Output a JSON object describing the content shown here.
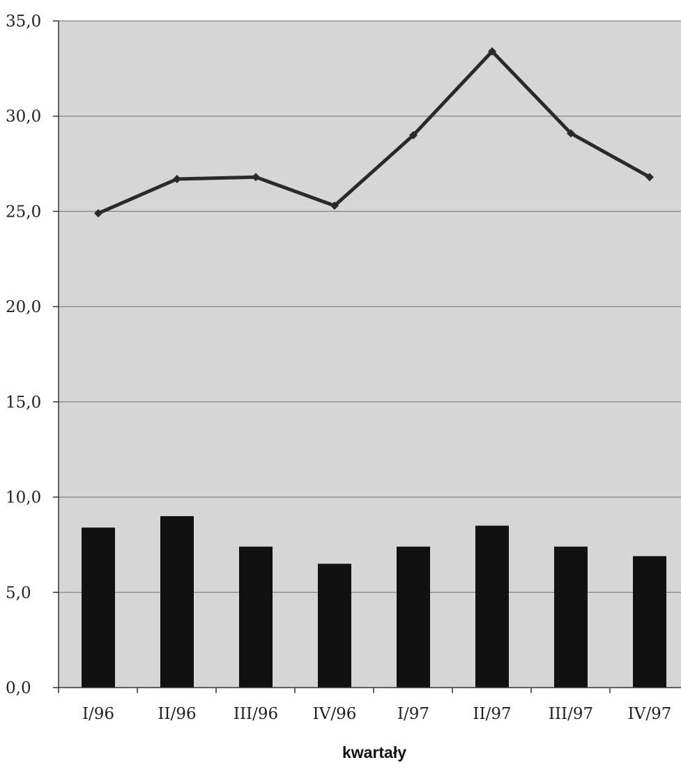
{
  "chart_data": {
    "type": "bar",
    "categories": [
      "I/96",
      "II/96",
      "III/96",
      "IV/96",
      "I/97",
      "II/97",
      "III/97",
      "IV/97"
    ],
    "series": [
      {
        "type": "bar",
        "values": [
          8.4,
          9.0,
          7.4,
          6.5,
          7.4,
          8.5,
          7.4,
          6.9
        ],
        "color": "#111111"
      },
      {
        "type": "line",
        "values": [
          24.9,
          26.7,
          26.8,
          25.3,
          29.0,
          33.4,
          29.1,
          26.8
        ],
        "color": "#2a2a2a"
      }
    ],
    "yticks": [
      "0,0",
      "5,0",
      "10,0",
      "15,0",
      "20,0",
      "25,0",
      "30,0",
      "35,0"
    ],
    "ylim": [
      0,
      35
    ],
    "xlabel": "kwartały",
    "ylabel": "",
    "title": "",
    "grid": true,
    "plot_background": "#d6d6d6"
  }
}
